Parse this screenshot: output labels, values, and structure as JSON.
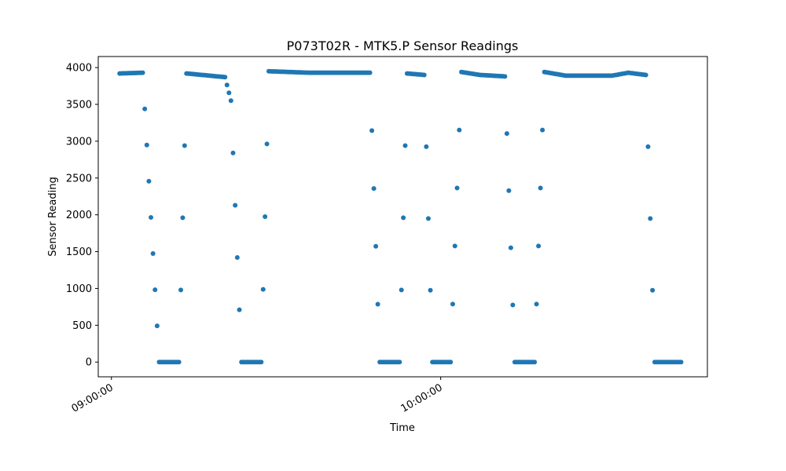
{
  "chart_data": {
    "type": "scatter",
    "title": "P073T02R - MTK5.P Sensor Readings",
    "xlabel": "Time",
    "ylabel": "Sensor Reading",
    "xlim": [
      -4,
      181
    ],
    "ylim": [
      -200,
      4150
    ],
    "x_ticks": [
      {
        "value": 0,
        "label": "09:00:00"
      },
      {
        "value": 100,
        "label": "10:00:00"
      }
    ],
    "y_ticks": [
      0,
      500,
      1000,
      1500,
      2000,
      2500,
      3000,
      3500,
      4000
    ],
    "marker_color": "#1f77b4",
    "sample_interval_minutes": 0.6,
    "segments": [
      {
        "x0": 2.5,
        "x1": 9.5,
        "y0": 3920,
        "y1": 3930
      },
      {
        "x0": 9.5,
        "x1": 14.5,
        "y0": 3930,
        "y1": 0
      },
      {
        "x0": 14.5,
        "x1": 20.5,
        "y0": 0,
        "y1": 0
      },
      {
        "x0": 20.5,
        "x1": 22.8,
        "y0": 0,
        "y1": 3920
      },
      {
        "x0": 22.8,
        "x1": 27.5,
        "y0": 3920,
        "y1": 3900
      },
      {
        "x0": 27.5,
        "x1": 34.5,
        "y0": 3900,
        "y1": 3870
      },
      {
        "x0": 34.5,
        "x1": 36.3,
        "y0": 3870,
        "y1": 3550
      },
      {
        "x0": 36.3,
        "x1": 39.5,
        "y0": 3550,
        "y1": 0
      },
      {
        "x0": 39.5,
        "x1": 45.5,
        "y0": 0,
        "y1": 0
      },
      {
        "x0": 45.5,
        "x1": 47.8,
        "y0": 0,
        "y1": 3950
      },
      {
        "x0": 47.8,
        "x1": 60.0,
        "y0": 3950,
        "y1": 3930
      },
      {
        "x0": 60.0,
        "x1": 70.0,
        "y0": 3930,
        "y1": 3930
      },
      {
        "x0": 70.0,
        "x1": 78.5,
        "y0": 3930,
        "y1": 3930
      },
      {
        "x0": 78.5,
        "x1": 81.5,
        "y0": 3930,
        "y1": 0
      },
      {
        "x0": 81.5,
        "x1": 87.5,
        "y0": 0,
        "y1": 0
      },
      {
        "x0": 87.5,
        "x1": 89.8,
        "y0": 0,
        "y1": 3920
      },
      {
        "x0": 89.8,
        "x1": 95.0,
        "y0": 3920,
        "y1": 3900
      },
      {
        "x0": 95.0,
        "x1": 97.5,
        "y0": 3900,
        "y1": 0
      },
      {
        "x0": 97.5,
        "x1": 103.0,
        "y0": 0,
        "y1": 0
      },
      {
        "x0": 103.0,
        "x1": 106.3,
        "y0": 0,
        "y1": 3940
      },
      {
        "x0": 106.3,
        "x1": 112.0,
        "y0": 3940,
        "y1": 3900
      },
      {
        "x0": 112.0,
        "x1": 119.5,
        "y0": 3900,
        "y1": 3880
      },
      {
        "x0": 119.5,
        "x1": 122.5,
        "y0": 3880,
        "y1": 0
      },
      {
        "x0": 122.5,
        "x1": 128.5,
        "y0": 0,
        "y1": 0
      },
      {
        "x0": 128.5,
        "x1": 131.5,
        "y0": 0,
        "y1": 3940
      },
      {
        "x0": 131.5,
        "x1": 138.0,
        "y0": 3940,
        "y1": 3890
      },
      {
        "x0": 138.0,
        "x1": 152.0,
        "y0": 3890,
        "y1": 3890
      },
      {
        "x0": 152.0,
        "x1": 157.0,
        "y0": 3890,
        "y1": 3930
      },
      {
        "x0": 157.0,
        "x1": 162.3,
        "y0": 3930,
        "y1": 3900
      },
      {
        "x0": 162.3,
        "x1": 165.0,
        "y0": 3900,
        "y1": 0
      },
      {
        "x0": 165.0,
        "x1": 173.0,
        "y0": 0,
        "y1": 0
      }
    ]
  }
}
